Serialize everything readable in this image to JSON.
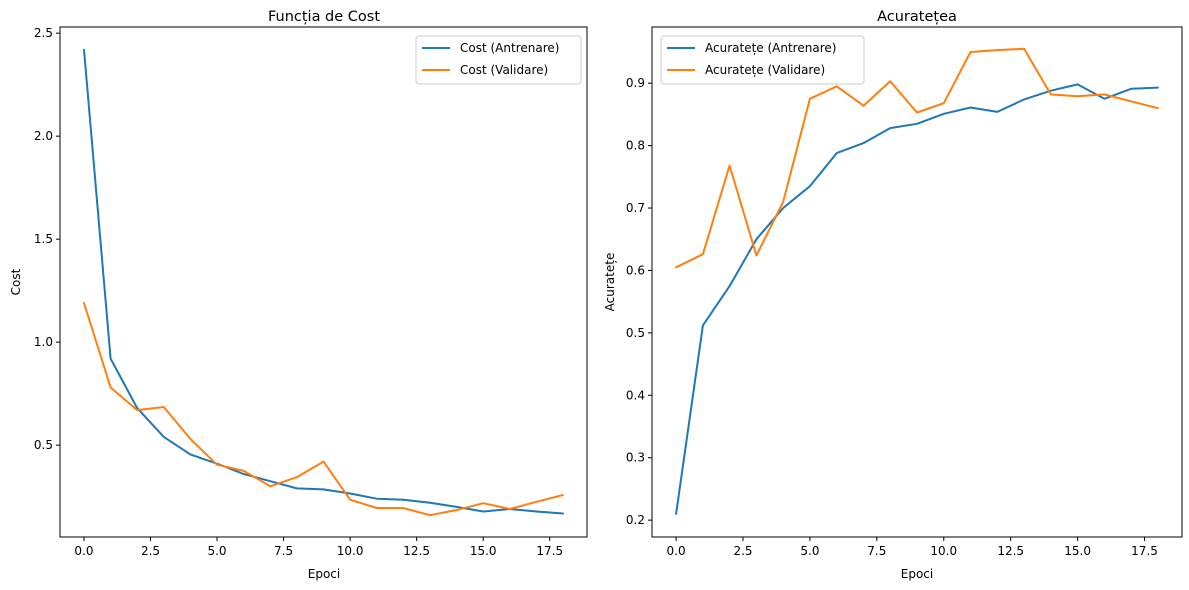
{
  "colors": {
    "train": "#1f77b4",
    "validation": "#ff7f0e"
  },
  "chart_data": [
    {
      "type": "line",
      "title": "Funcția de Cost",
      "xlabel": "Epoci",
      "ylabel": "Cost",
      "xlim": [
        -0.9,
        18.9
      ],
      "ylim": [
        0.054,
        2.53
      ],
      "xticks": [
        0,
        2.5,
        5,
        7.5,
        10,
        12.5,
        15,
        17.5
      ],
      "xtick_labels": [
        "0.0",
        "2.5",
        "5.0",
        "7.5",
        "10.0",
        "12.5",
        "15.0",
        "17.5"
      ],
      "yticks": [
        0.5,
        1.0,
        1.5,
        2.0,
        2.5
      ],
      "ytick_labels": [
        "0.5",
        "1.0",
        "1.5",
        "2.0",
        "2.5"
      ],
      "legend_position": "top-right",
      "grid": false,
      "x": [
        0,
        1,
        2,
        3,
        4,
        5,
        6,
        7,
        8,
        9,
        10,
        11,
        12,
        13,
        14,
        15,
        16,
        17,
        18
      ],
      "series": [
        {
          "name": "Cost (Antrenare)",
          "color": "#1f77b4",
          "values": [
            2.42,
            0.92,
            0.68,
            0.54,
            0.455,
            0.41,
            0.36,
            0.325,
            0.29,
            0.285,
            0.265,
            0.24,
            0.235,
            0.22,
            0.2,
            0.178,
            0.19,
            0.178,
            0.168
          ]
        },
        {
          "name": "Cost (Validare)",
          "color": "#ff7f0e",
          "values": [
            1.19,
            0.78,
            0.67,
            0.685,
            0.53,
            0.405,
            0.375,
            0.3,
            0.345,
            0.42,
            0.235,
            0.195,
            0.195,
            0.16,
            0.185,
            0.218,
            0.19,
            0.225,
            0.258
          ]
        }
      ]
    },
    {
      "type": "line",
      "title": "Acuratețea",
      "xlabel": "Epoci",
      "ylabel": "Acuratețe",
      "xlim": [
        -0.9,
        18.9
      ],
      "ylim": [
        0.173,
        0.99
      ],
      "xticks": [
        0,
        2.5,
        5,
        7.5,
        10,
        12.5,
        15,
        17.5
      ],
      "xtick_labels": [
        "0.0",
        "2.5",
        "5.0",
        "7.5",
        "10.0",
        "12.5",
        "15.0",
        "17.5"
      ],
      "yticks": [
        0.2,
        0.3,
        0.4,
        0.5,
        0.6,
        0.7,
        0.8,
        0.9
      ],
      "ytick_labels": [
        "0.2",
        "0.3",
        "0.4",
        "0.5",
        "0.6",
        "0.7",
        "0.8",
        "0.9"
      ],
      "legend_position": "top-left",
      "grid": false,
      "x": [
        0,
        1,
        2,
        3,
        4,
        5,
        6,
        7,
        8,
        9,
        10,
        11,
        12,
        13,
        14,
        15,
        16,
        17,
        18
      ],
      "series": [
        {
          "name": "Acuratețe (Antrenare)",
          "color": "#1f77b4",
          "values": [
            0.21,
            0.512,
            0.575,
            0.65,
            0.7,
            0.735,
            0.788,
            0.804,
            0.828,
            0.835,
            0.851,
            0.861,
            0.854,
            0.874,
            0.888,
            0.898,
            0.875,
            0.891,
            0.893
          ]
        },
        {
          "name": "Acuratețe (Validare)",
          "color": "#ff7f0e",
          "values": [
            0.605,
            0.626,
            0.768,
            0.624,
            0.71,
            0.875,
            0.895,
            0.864,
            0.903,
            0.853,
            0.868,
            0.95,
            0.953,
            0.955,
            0.882,
            0.879,
            0.882,
            0.871,
            0.86
          ]
        }
      ]
    }
  ]
}
